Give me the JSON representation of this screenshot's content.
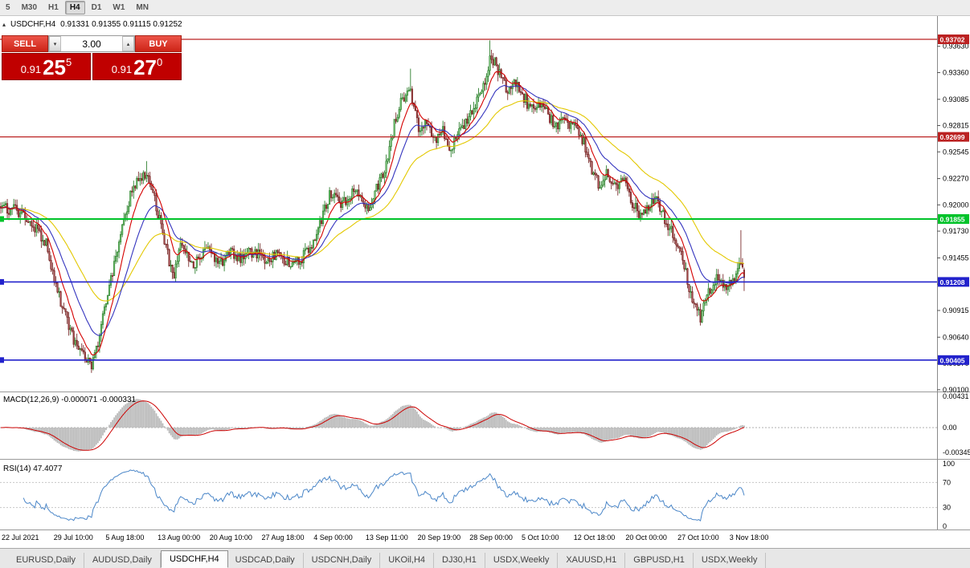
{
  "toolbar": {
    "periods": [
      {
        "label": "5"
      },
      {
        "label": "M30"
      },
      {
        "label": "H1"
      },
      {
        "label": "H4"
      },
      {
        "label": "D1"
      },
      {
        "label": "W1"
      },
      {
        "label": "MN"
      }
    ]
  },
  "chart": {
    "collapse_icon": "▴",
    "symbol_period": "USDCHF,H4",
    "ohlc": "0.91331 0.91355 0.91115 0.91252"
  },
  "trade_panel": {
    "sell_label": "SELL",
    "buy_label": "BUY",
    "volume": "3.00",
    "volume_up_icon": "▴",
    "volume_down_icon": "▾",
    "sell_price": {
      "prefix": "0.91",
      "big": "25",
      "sup": "5"
    },
    "buy_price": {
      "prefix": "0.91",
      "big": "27",
      "sup": "0"
    }
  },
  "chart_data": {
    "type": "candlestick",
    "symbol": "USDCHF",
    "timeframe": "H4",
    "last_ohlc": {
      "open": 0.91331,
      "high": 0.91355,
      "low": 0.91115,
      "close": 0.91252
    },
    "bars": 460,
    "plot_right_fraction": 0.795,
    "price_domain": {
      "top": 0.93875,
      "bottom": 0.9009
    },
    "price_ticks": [
      "0.93630",
      "0.93360",
      "0.93085",
      "0.92815",
      "0.92545",
      "0.92270",
      "0.92000",
      "0.91730",
      "0.91455",
      "0.91185",
      "0.90915",
      "0.90640",
      "0.90370",
      "0.90100"
    ],
    "price_lines": [
      {
        "label": "0.93702",
        "price": 0.93702,
        "color": "#bb2222",
        "width": 1.2,
        "left_marker": false
      },
      {
        "label": "0.92699",
        "price": 0.92699,
        "color": "#bb2222",
        "width": 1.2,
        "left_marker": false
      },
      {
        "label": "0.91855",
        "price": 0.91855,
        "color": "#00c32a",
        "width": 2,
        "left_marker": true
      },
      {
        "label": "0.91208",
        "price": 0.91208,
        "color": "#2222cc",
        "width": 1.6,
        "left_marker": true
      },
      {
        "label": "0.90405",
        "price": 0.90405,
        "color": "#2222cc",
        "width": 1.6,
        "left_marker": true
      }
    ],
    "candle_up": {
      "fill": "#7ec87e",
      "stroke": "#157015"
    },
    "candle_down": {
      "fill": "#a04848",
      "stroke": "#6b1515"
    },
    "moving_averages": [
      {
        "period": 55,
        "color": "#e3c800"
      },
      {
        "period": 24,
        "color": "#3434be"
      },
      {
        "period": 10,
        "color": "#d40000"
      }
    ],
    "price_path": [
      [
        0,
        0.9198
      ],
      [
        0.03,
        0.9192
      ],
      [
        0.06,
        0.9163
      ],
      [
        0.081,
        0.9097
      ],
      [
        0.097,
        0.9064
      ],
      [
        0.113,
        0.9042
      ],
      [
        0.122,
        0.9035
      ],
      [
        0.13,
        0.9056
      ],
      [
        0.146,
        0.9114
      ],
      [
        0.162,
        0.9171
      ],
      [
        0.178,
        0.9221
      ],
      [
        0.195,
        0.9233
      ],
      [
        0.205,
        0.921
      ],
      [
        0.232,
        0.9126
      ],
      [
        0.243,
        0.9163
      ],
      [
        0.259,
        0.9138
      ],
      [
        0.276,
        0.9155
      ],
      [
        0.292,
        0.9138
      ],
      [
        0.308,
        0.915
      ],
      [
        0.324,
        0.9145
      ],
      [
        0.341,
        0.9153
      ],
      [
        0.357,
        0.9141
      ],
      [
        0.373,
        0.915
      ],
      [
        0.389,
        0.9138
      ],
      [
        0.405,
        0.9146
      ],
      [
        0.422,
        0.9163
      ],
      [
        0.432,
        0.9187
      ],
      [
        0.443,
        0.9212
      ],
      [
        0.459,
        0.92
      ],
      [
        0.476,
        0.9216
      ],
      [
        0.492,
        0.9196
      ],
      [
        0.503,
        0.9212
      ],
      [
        0.517,
        0.9237
      ],
      [
        0.53,
        0.9286
      ],
      [
        0.541,
        0.9311
      ],
      [
        0.551,
        0.9319
      ],
      [
        0.562,
        0.9278
      ],
      [
        0.573,
        0.9286
      ],
      [
        0.584,
        0.9265
      ],
      [
        0.595,
        0.9278
      ],
      [
        0.605,
        0.9257
      ],
      [
        0.616,
        0.9278
      ],
      [
        0.627,
        0.9286
      ],
      [
        0.638,
        0.9303
      ],
      [
        0.649,
        0.9319
      ],
      [
        0.659,
        0.9356
      ],
      [
        0.67,
        0.9335
      ],
      [
        0.681,
        0.9319
      ],
      [
        0.692,
        0.9327
      ],
      [
        0.703,
        0.9311
      ],
      [
        0.714,
        0.9298
      ],
      [
        0.724,
        0.9307
      ],
      [
        0.735,
        0.9294
      ],
      [
        0.746,
        0.9281
      ],
      [
        0.757,
        0.9286
      ],
      [
        0.768,
        0.9278
      ],
      [
        0.773,
        0.9286
      ],
      [
        0.784,
        0.9265
      ],
      [
        0.795,
        0.9236
      ],
      [
        0.805,
        0.922
      ],
      [
        0.816,
        0.9232
      ],
      [
        0.827,
        0.9216
      ],
      [
        0.838,
        0.9224
      ],
      [
        0.849,
        0.9203
      ],
      [
        0.859,
        0.9191
      ],
      [
        0.87,
        0.9199
      ],
      [
        0.881,
        0.9207
      ],
      [
        0.892,
        0.9187
      ],
      [
        0.903,
        0.9174
      ],
      [
        0.914,
        0.9154
      ],
      [
        0.924,
        0.9121
      ],
      [
        0.932,
        0.9096
      ],
      [
        0.941,
        0.9084
      ],
      [
        0.949,
        0.9104
      ],
      [
        0.957,
        0.9117
      ],
      [
        0.965,
        0.9125
      ],
      [
        0.973,
        0.9117
      ],
      [
        0.981,
        0.9121
      ],
      [
        0.989,
        0.9129
      ],
      [
        0.995,
        0.914
      ],
      [
        1,
        0.91252
      ]
    ],
    "wick_marks": [
      {
        "t": 0.122,
        "low": 0.9028
      },
      {
        "t": 0.195,
        "high": 0.9245
      },
      {
        "t": 0.551,
        "high": 0.934
      },
      {
        "t": 0.659,
        "high": 0.9369
      },
      {
        "t": 0.941,
        "low": 0.9076
      },
      {
        "t": 0.995,
        "high": 0.9174
      }
    ],
    "macd": {
      "label": "MACD(12,26,9) -0.000071 -0.000331",
      "fast": 12,
      "slow": 26,
      "signal_period": 9,
      "value": -7.1e-05,
      "signal_value": -0.000331,
      "scale_labels": [
        "0.00431",
        "0.00",
        "-0.00345"
      ],
      "histogram_color": "#b8b8b8",
      "signal_color": "#cc0000"
    },
    "rsi": {
      "label": "RSI(14) 47.4077",
      "period": 14,
      "value": 47.4077,
      "levels": [
        70,
        30
      ],
      "level_labels": [
        "100",
        "70",
        "30",
        "0"
      ],
      "line_color": "#4a86c8"
    },
    "time_labels": [
      "22 Jul 2021",
      "29 Jul 10:00",
      "5 Aug 18:00",
      "13 Aug 00:00",
      "20 Aug 10:00",
      "27 Aug 18:00",
      "4 Sep 00:00",
      "13 Sep 11:00",
      "20 Sep 19:00",
      "28 Sep 00:00",
      "5 Oct 10:00",
      "12 Oct 18:00",
      "20 Oct 00:00",
      "27 Oct 10:00",
      "3 Nov 18:00"
    ]
  },
  "tabs": {
    "active_index": 2,
    "items": [
      "EURUSD,Daily",
      "AUDUSD,Daily",
      "USDCHF,H4",
      "USDCAD,Daily",
      "USDCNH,Daily",
      "UKOil,H4",
      "DJ30,H1",
      "USDX,Weekly",
      "XAUUSD,H1",
      "GBPUSD,H1",
      "USDX,Weekly"
    ]
  }
}
